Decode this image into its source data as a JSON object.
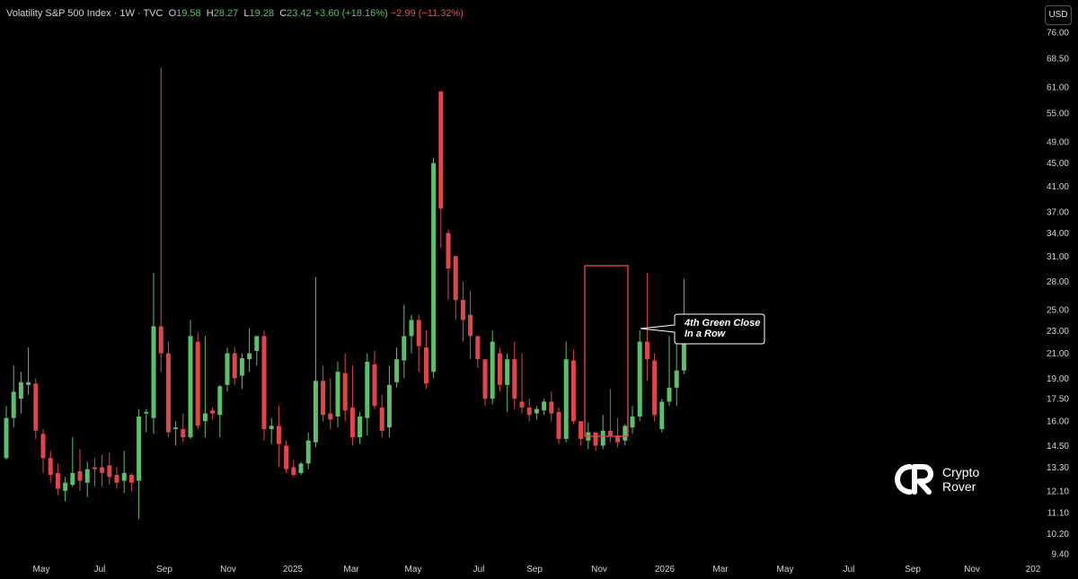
{
  "header": {
    "title": "Volatility S&P 500 Index · 1W · TVC",
    "open_label": "O",
    "open": "19.58",
    "high_label": "H",
    "high": "28.27",
    "low_label": "L",
    "low": "19.28",
    "close_label": "C",
    "close": "23.42",
    "change": "+3.60 (+18.16%)",
    "change2": "−2.99 (−11.32%)"
  },
  "currency_button": "USD",
  "annotation": {
    "line1": "4th Green Close",
    "line2": "In a Row"
  },
  "logo": {
    "line1": "Crypto",
    "line2": "Rover"
  },
  "colors": {
    "up": "#5cc06a",
    "down": "#e2444a",
    "box": "#e2444a",
    "background": "#000000"
  },
  "chart_data": {
    "type": "candlestick",
    "interval": "1W",
    "y_scale": "log",
    "ylim": [
      9.0,
      79.0
    ],
    "y_ticks": [
      76.0,
      68.5,
      61.0,
      55.0,
      49.0,
      45.0,
      41.0,
      37.0,
      34.0,
      31.0,
      28.0,
      25.0,
      23.0,
      21.0,
      19.0,
      17.5,
      16.0,
      14.5,
      13.3,
      12.1,
      11.1,
      10.2,
      9.4
    ],
    "y_tick_labels": [
      "76.00",
      "68.50",
      "61.00",
      "55.00",
      "49.00",
      "45.00",
      "41.00",
      "37.00",
      "34.00",
      "31.00",
      "28.00",
      "25.00",
      "23.00",
      "21.00",
      "19.00",
      "17.50",
      "16.00",
      "14.50",
      "13.30",
      "12.10",
      "11.10",
      "10.20",
      "9.40"
    ],
    "x_tick_labels": [
      "May",
      "Jul",
      "Sep",
      "Nov",
      "2025",
      "Mar",
      "May",
      "Jul",
      "Sep",
      "Nov",
      "2026",
      "Mar",
      "May",
      "Jul",
      "Sep",
      "Nov",
      "202"
    ],
    "candles": [
      {
        "o": 13.8,
        "h": 17.0,
        "l": 13.7,
        "c": 16.2
      },
      {
        "o": 16.2,
        "h": 20.0,
        "l": 15.6,
        "c": 18.0
      },
      {
        "o": 17.5,
        "h": 19.5,
        "l": 16.5,
        "c": 18.7
      },
      {
        "o": 18.5,
        "h": 21.5,
        "l": 17.8,
        "c": 18.7
      },
      {
        "o": 18.6,
        "h": 19.0,
        "l": 14.9,
        "c": 15.4
      },
      {
        "o": 15.2,
        "h": 15.5,
        "l": 13.0,
        "c": 13.8
      },
      {
        "o": 13.8,
        "h": 14.2,
        "l": 12.5,
        "c": 12.9
      },
      {
        "o": 13.0,
        "h": 13.5,
        "l": 11.9,
        "c": 12.2
      },
      {
        "o": 12.1,
        "h": 12.8,
        "l": 11.6,
        "c": 12.5
      },
      {
        "o": 12.4,
        "h": 15.0,
        "l": 12.3,
        "c": 13.0
      },
      {
        "o": 13.1,
        "h": 14.3,
        "l": 12.1,
        "c": 12.6
      },
      {
        "o": 12.5,
        "h": 13.6,
        "l": 11.8,
        "c": 13.2
      },
      {
        "o": 13.3,
        "h": 13.8,
        "l": 12.3,
        "c": 13.2
      },
      {
        "o": 13.3,
        "h": 14.0,
        "l": 12.3,
        "c": 13.0
      },
      {
        "o": 13.4,
        "h": 14.1,
        "l": 12.4,
        "c": 12.8
      },
      {
        "o": 12.9,
        "h": 13.3,
        "l": 12.2,
        "c": 12.5
      },
      {
        "o": 12.6,
        "h": 14.2,
        "l": 12.0,
        "c": 13.0
      },
      {
        "o": 12.9,
        "h": 13.0,
        "l": 12.1,
        "c": 12.5
      },
      {
        "o": 12.6,
        "h": 16.8,
        "l": 10.8,
        "c": 16.3
      },
      {
        "o": 16.5,
        "h": 16.8,
        "l": 15.3,
        "c": 16.6
      },
      {
        "o": 16.2,
        "h": 29.0,
        "l": 15.2,
        "c": 23.4
      },
      {
        "o": 23.4,
        "h": 66.0,
        "l": 19.5,
        "c": 21.0
      },
      {
        "o": 21.0,
        "h": 22.0,
        "l": 15.0,
        "c": 15.3
      },
      {
        "o": 15.5,
        "h": 16.0,
        "l": 14.5,
        "c": 15.6
      },
      {
        "o": 15.5,
        "h": 16.5,
        "l": 14.7,
        "c": 15.0
      },
      {
        "o": 15.0,
        "h": 24.0,
        "l": 14.9,
        "c": 22.5
      },
      {
        "o": 22.0,
        "h": 22.8,
        "l": 15.5,
        "c": 15.7
      },
      {
        "o": 16.0,
        "h": 22.5,
        "l": 15.0,
        "c": 16.5
      },
      {
        "o": 16.7,
        "h": 16.9,
        "l": 16.1,
        "c": 16.5
      },
      {
        "o": 16.4,
        "h": 18.5,
        "l": 15.0,
        "c": 18.4
      },
      {
        "o": 18.5,
        "h": 21.5,
        "l": 18.0,
        "c": 21.0
      },
      {
        "o": 21.0,
        "h": 21.5,
        "l": 18.5,
        "c": 19.0
      },
      {
        "o": 19.2,
        "h": 21.0,
        "l": 18.2,
        "c": 20.6
      },
      {
        "o": 20.5,
        "h": 23.2,
        "l": 19.5,
        "c": 21.0
      },
      {
        "o": 21.2,
        "h": 22.5,
        "l": 20.0,
        "c": 22.5
      },
      {
        "o": 22.5,
        "h": 23.0,
        "l": 14.8,
        "c": 15.5
      },
      {
        "o": 15.5,
        "h": 16.2,
        "l": 14.6,
        "c": 15.7
      },
      {
        "o": 15.7,
        "h": 17.0,
        "l": 13.3,
        "c": 14.6
      },
      {
        "o": 14.5,
        "h": 14.8,
        "l": 13.0,
        "c": 13.2
      },
      {
        "o": 13.3,
        "h": 13.7,
        "l": 12.8,
        "c": 12.9
      },
      {
        "o": 13.0,
        "h": 13.6,
        "l": 12.9,
        "c": 13.5
      },
      {
        "o": 13.5,
        "h": 15.3,
        "l": 13.2,
        "c": 14.8
      },
      {
        "o": 14.7,
        "h": 28.5,
        "l": 14.4,
        "c": 18.8
      },
      {
        "o": 18.8,
        "h": 20.0,
        "l": 16.0,
        "c": 16.4
      },
      {
        "o": 16.5,
        "h": 19.0,
        "l": 15.5,
        "c": 16.1
      },
      {
        "o": 16.3,
        "h": 20.3,
        "l": 15.6,
        "c": 19.5
      },
      {
        "o": 19.4,
        "h": 21.0,
        "l": 16.0,
        "c": 16.7
      },
      {
        "o": 16.9,
        "h": 20.0,
        "l": 14.5,
        "c": 15.0
      },
      {
        "o": 15.0,
        "h": 16.6,
        "l": 14.6,
        "c": 16.3
      },
      {
        "o": 16.2,
        "h": 21.0,
        "l": 15.1,
        "c": 20.3
      },
      {
        "o": 20.1,
        "h": 21.2,
        "l": 16.8,
        "c": 17.0
      },
      {
        "o": 16.9,
        "h": 17.8,
        "l": 15.0,
        "c": 15.4
      },
      {
        "o": 15.6,
        "h": 20.0,
        "l": 15.0,
        "c": 18.5
      },
      {
        "o": 18.7,
        "h": 21.5,
        "l": 18.3,
        "c": 20.5
      },
      {
        "o": 20.4,
        "h": 25.5,
        "l": 19.0,
        "c": 22.5
      },
      {
        "o": 22.5,
        "h": 24.5,
        "l": 21.0,
        "c": 24.0
      },
      {
        "o": 24.0,
        "h": 24.5,
        "l": 19.5,
        "c": 21.6
      },
      {
        "o": 21.5,
        "h": 23.0,
        "l": 18.2,
        "c": 18.6
      },
      {
        "o": 19.5,
        "h": 46.0,
        "l": 19.0,
        "c": 45.0
      },
      {
        "o": 60.0,
        "h": 60.0,
        "l": 32.0,
        "c": 37.5
      },
      {
        "o": 34.0,
        "h": 34.5,
        "l": 26.0,
        "c": 29.5
      },
      {
        "o": 31.0,
        "h": 31.0,
        "l": 24.0,
        "c": 26.0
      },
      {
        "o": 26.0,
        "h": 28.0,
        "l": 22.0,
        "c": 24.0
      },
      {
        "o": 24.5,
        "h": 27.0,
        "l": 20.5,
        "c": 22.5
      },
      {
        "o": 22.5,
        "h": 22.5,
        "l": 19.8,
        "c": 20.5
      },
      {
        "o": 20.5,
        "h": 20.5,
        "l": 17.0,
        "c": 17.5
      },
      {
        "o": 17.5,
        "h": 23.0,
        "l": 17.1,
        "c": 22.0
      },
      {
        "o": 21.0,
        "h": 21.5,
        "l": 18.0,
        "c": 18.5
      },
      {
        "o": 18.5,
        "h": 21.0,
        "l": 16.6,
        "c": 20.5
      },
      {
        "o": 20.5,
        "h": 22.0,
        "l": 16.8,
        "c": 17.5
      },
      {
        "o": 17.3,
        "h": 21.0,
        "l": 16.5,
        "c": 16.9
      },
      {
        "o": 16.9,
        "h": 17.5,
        "l": 16.0,
        "c": 16.4
      },
      {
        "o": 16.5,
        "h": 17.0,
        "l": 16.1,
        "c": 16.8
      },
      {
        "o": 16.7,
        "h": 17.5,
        "l": 16.4,
        "c": 17.3
      },
      {
        "o": 17.3,
        "h": 18.0,
        "l": 16.0,
        "c": 16.5
      },
      {
        "o": 16.6,
        "h": 16.9,
        "l": 14.6,
        "c": 14.9
      },
      {
        "o": 14.9,
        "h": 22.0,
        "l": 14.7,
        "c": 20.5
      },
      {
        "o": 20.4,
        "h": 21.3,
        "l": 15.8,
        "c": 16.0
      },
      {
        "o": 16.0,
        "h": 16.0,
        "l": 14.5,
        "c": 14.9
      },
      {
        "o": 14.8,
        "h": 15.9,
        "l": 14.3,
        "c": 15.3
      },
      {
        "o": 15.3,
        "h": 15.3,
        "l": 14.2,
        "c": 14.5
      },
      {
        "o": 14.5,
        "h": 16.4,
        "l": 14.3,
        "c": 15.4
      },
      {
        "o": 15.4,
        "h": 18.2,
        "l": 14.7,
        "c": 15.1
      },
      {
        "o": 15.1,
        "h": 16.2,
        "l": 14.4,
        "c": 14.7
      },
      {
        "o": 14.8,
        "h": 15.8,
        "l": 14.5,
        "c": 15.7
      },
      {
        "o": 15.6,
        "h": 17.0,
        "l": 15.2,
        "c": 16.3
      },
      {
        "o": 16.3,
        "h": 23.0,
        "l": 16.0,
        "c": 22.0
      },
      {
        "o": 22.0,
        "h": 29.0,
        "l": 18.8,
        "c": 20.5
      },
      {
        "o": 20.4,
        "h": 21.0,
        "l": 16.0,
        "c": 16.4
      },
      {
        "o": 15.5,
        "h": 17.5,
        "l": 15.3,
        "c": 17.3
      },
      {
        "o": 17.3,
        "h": 22.5,
        "l": 17.0,
        "c": 18.3
      },
      {
        "o": 18.3,
        "h": 23.0,
        "l": 17.0,
        "c": 19.6
      },
      {
        "o": 19.6,
        "h": 28.3,
        "l": 19.3,
        "c": 23.4
      }
    ]
  }
}
